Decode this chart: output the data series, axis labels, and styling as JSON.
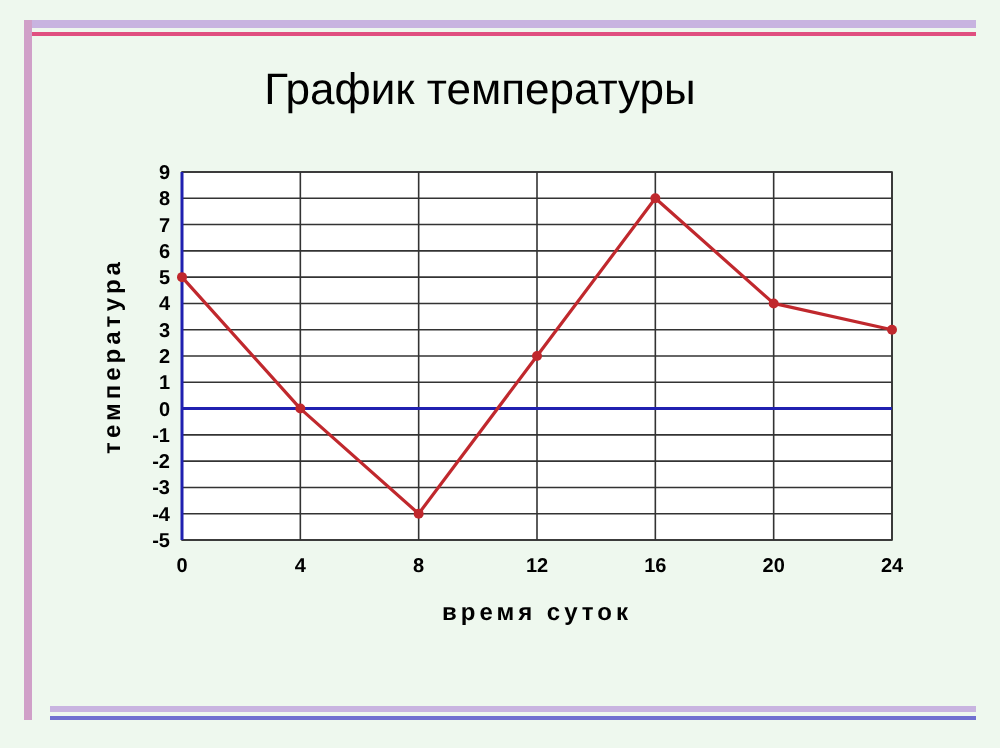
{
  "chart_data": {
    "type": "line",
    "title": "График температуры",
    "xlabel": "время суток",
    "ylabel": "температура",
    "x": [
      0,
      4,
      8,
      12,
      16,
      20,
      24
    ],
    "series": [
      {
        "color": "#c0282d",
        "values": [
          5,
          0,
          -4,
          2,
          8,
          4,
          3
        ]
      }
    ],
    "xlim": [
      0,
      24
    ],
    "xticks": [
      0,
      4,
      8,
      12,
      16,
      20,
      24
    ],
    "ylim": [
      -5,
      9
    ],
    "yticks": [
      -5,
      -4,
      -3,
      -2,
      -1,
      0,
      1,
      2,
      3,
      4,
      5,
      6,
      7,
      8,
      9
    ],
    "ref_lines": [
      {
        "axis": "y",
        "value": 0,
        "color": "#2020b0"
      }
    ],
    "grid": true,
    "marker": "circle",
    "line_style": "solid"
  }
}
